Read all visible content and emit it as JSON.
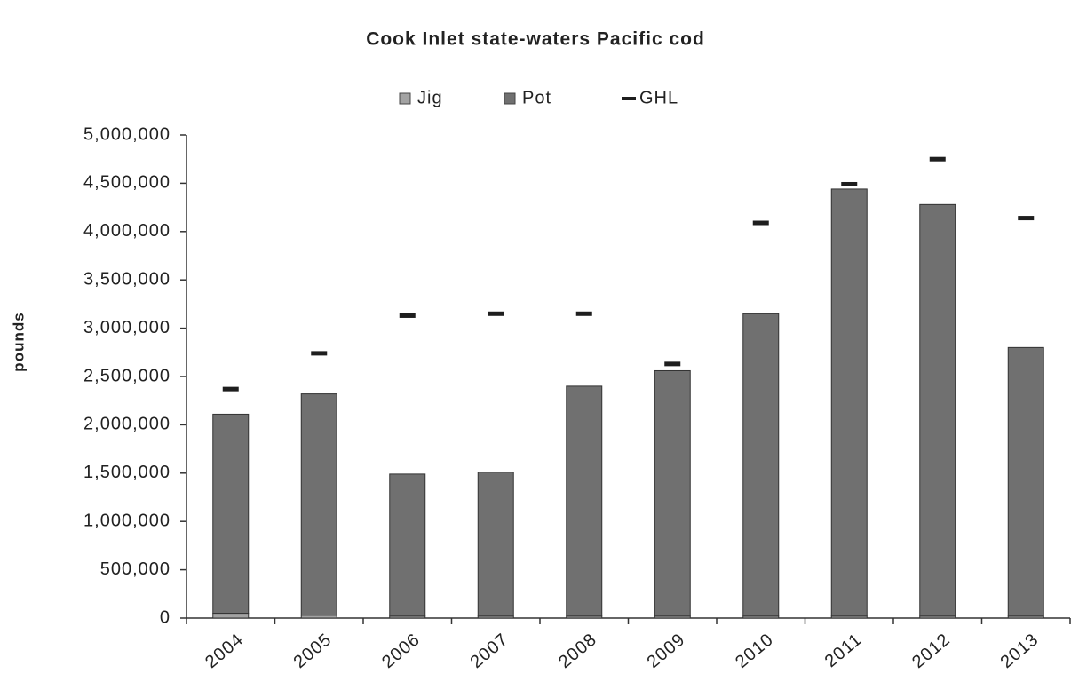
{
  "chart_data": {
    "type": "bar",
    "stacked": true,
    "title": "Cook Inlet state-waters Pacific cod",
    "y_label": "pounds",
    "categories": [
      "2004",
      "2005",
      "2006",
      "2007",
      "2008",
      "2009",
      "2010",
      "2011",
      "2012",
      "2013"
    ],
    "series": [
      {
        "name": "Jig",
        "color": "#a3a3a3",
        "values": [
          50000,
          30000,
          20000,
          20000,
          20000,
          20000,
          20000,
          20000,
          20000,
          20000
        ]
      },
      {
        "name": "Pot",
        "color": "#707070",
        "values": [
          2060000,
          2290000,
          1470000,
          1490000,
          2380000,
          2540000,
          3130000,
          4420000,
          4260000,
          2780000
        ]
      },
      {
        "name": "GHL",
        "color": "#1e1e1e",
        "type": "dash",
        "values": [
          2370000,
          2740000,
          3130000,
          3150000,
          3150000,
          2630000,
          4090000,
          4490000,
          4750000,
          4140000
        ]
      }
    ],
    "ylim": [
      0,
      5000000
    ],
    "yticks": [
      0,
      {
        "value": 500000,
        "label": "500,000"
      },
      {
        "value": 1000000,
        "label": "1,000,000"
      },
      {
        "value": 1500000,
        "label": "1,500,000"
      },
      {
        "value": 2000000,
        "label": "2,000,000"
      },
      {
        "value": 2500000,
        "label": "2,500,000"
      },
      {
        "value": 3000000,
        "label": "3,000,000"
      },
      {
        "value": 3500000,
        "label": "3,500,000"
      },
      {
        "value": 4000000,
        "label": "4,000,000"
      },
      {
        "value": 4500000,
        "label": "4,500,000"
      },
      {
        "value": 5000000,
        "label": "5,000,000"
      }
    ],
    "legend": "top",
    "grid": false
  }
}
